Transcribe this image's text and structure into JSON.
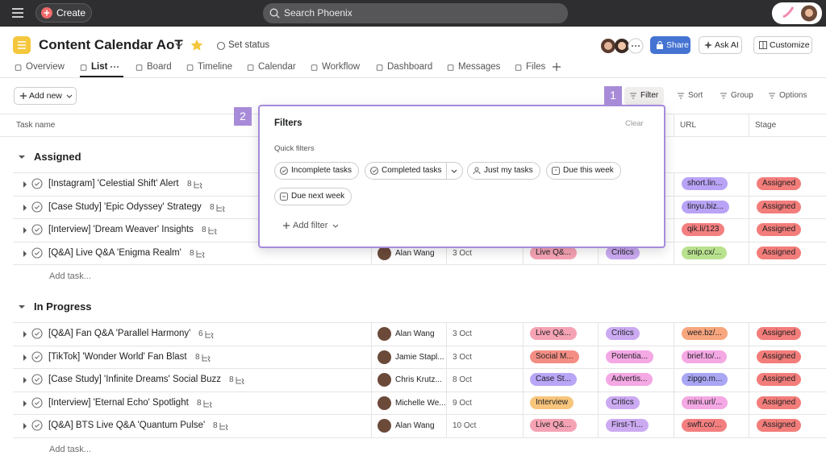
{
  "topbar": {
    "create": "Create",
    "search": "Search Phoenix"
  },
  "project": {
    "title": "Content Calendar AoT",
    "set_status": "Set status",
    "share": "Share",
    "ask_ai": "Ask AI",
    "customize": "Customize"
  },
  "tabs": [
    "Overview",
    "List",
    "Board",
    "Timeline",
    "Calendar",
    "Workflow",
    "Dashboard",
    "Messages",
    "Files"
  ],
  "toolbar": {
    "add_new": "Add new",
    "filter": "Filter",
    "sort": "Sort",
    "group": "Group",
    "options": "Options"
  },
  "columns": {
    "task_name": "Task name",
    "url": "URL",
    "stage": "Stage"
  },
  "sections": [
    {
      "name": "Assigned",
      "add_task": "Add task...",
      "tasks": [
        {
          "name": "[Instagram] 'Celestial Shift' Alert",
          "subtasks": 8,
          "url": "short.lin...",
          "url_color": "#b9a3f6",
          "stage": "Assigned",
          "stage_color": "#f27d7a"
        },
        {
          "name": "[Case Study] 'Epic Odyssey' Strategy",
          "subtasks": 8,
          "url": "tinyu.biz...",
          "url_color": "#b9a3f6",
          "stage": "Assigned",
          "stage_color": "#f27d7a"
        },
        {
          "name": "[Interview] 'Dream Weaver' Insights",
          "subtasks": 8,
          "url": "qik.li/123",
          "url_color": "#f47f80",
          "stage": "Assigned",
          "stage_color": "#f27d7a"
        },
        {
          "name": "[Q&A] Live Q&A 'Enigma Realm'",
          "subtasks": 8,
          "assignee": "Alan Wang",
          "date": "3 Oct",
          "type": "Live Q&...",
          "type_color": "#f5a3b4",
          "audience": "Critics",
          "audience_color": "#cbaaf2",
          "url": "snip.cx/...",
          "url_color": "#b9e28e",
          "stage": "Assigned",
          "stage_color": "#f27d7a"
        }
      ]
    },
    {
      "name": "In Progress",
      "add_task": "Add task...",
      "tasks": [
        {
          "name": "[Q&A] Fan Q&A 'Parallel Harmony'",
          "subtasks": 6,
          "assignee": "Alan Wang",
          "date": "3 Oct",
          "type": "Live Q&...",
          "type_color": "#f5a3b4",
          "audience": "Critics",
          "audience_color": "#cbaaf2",
          "url": "wee.bz/...",
          "url_color": "#f7a67e",
          "stage": "Assigned",
          "stage_color": "#f27d7a"
        },
        {
          "name": "[TikTok] 'Wonder World' Fan Blast",
          "subtasks": 8,
          "assignee": "Jamie Stapl...",
          "date": "3 Oct",
          "type": "Social M...",
          "type_color": "#f48e84",
          "audience": "Potentia...",
          "audience_color": "#f4a8e4",
          "url": "brief.to/...",
          "url_color": "#f4a8e4",
          "stage": "Assigned",
          "stage_color": "#f27d7a"
        },
        {
          "name": "[Case Study] 'Infinite Dreams' Social Buzz",
          "subtasks": 8,
          "assignee": "Chris Krutz...",
          "date": "8 Oct",
          "type": "Case St...",
          "type_color": "#b9a6f6",
          "audience": "Advertis...",
          "audience_color": "#f4a8e4",
          "url": "zipgo.m...",
          "url_color": "#a9a6f4",
          "stage": "Assigned",
          "stage_color": "#f27d7a"
        },
        {
          "name": "[Interview] 'Eternal Echo' Spotlight",
          "subtasks": 8,
          "assignee": "Michelle We...",
          "date": "9 Oct",
          "type": "Interview",
          "type_color": "#f8c57c",
          "audience": "Critics",
          "audience_color": "#cbaaf2",
          "url": "mini.url/...",
          "url_color": "#f4a8e4",
          "stage": "Assigned",
          "stage_color": "#f27d7a"
        },
        {
          "name": "[Q&A] BTS Live Q&A 'Quantum Pulse'",
          "subtasks": 8,
          "assignee": "Alan Wang",
          "date": "10 Oct",
          "type": "Live Q&...",
          "type_color": "#f5a3b4",
          "audience": "First-Ti...",
          "audience_color": "#cbaaf2",
          "url": "swft.co/...",
          "url_color": "#f47f80",
          "stage": "Assigned",
          "stage_color": "#f27d7a"
        }
      ]
    }
  ],
  "filters": {
    "title": "Filters",
    "clear": "Clear",
    "quick_label": "Quick filters",
    "chips": [
      "Incomplete tasks",
      "Completed tasks",
      "Just my tasks",
      "Due this week",
      "Due next week"
    ],
    "add_filter": "Add filter"
  },
  "annotations": [
    "1",
    "2"
  ]
}
